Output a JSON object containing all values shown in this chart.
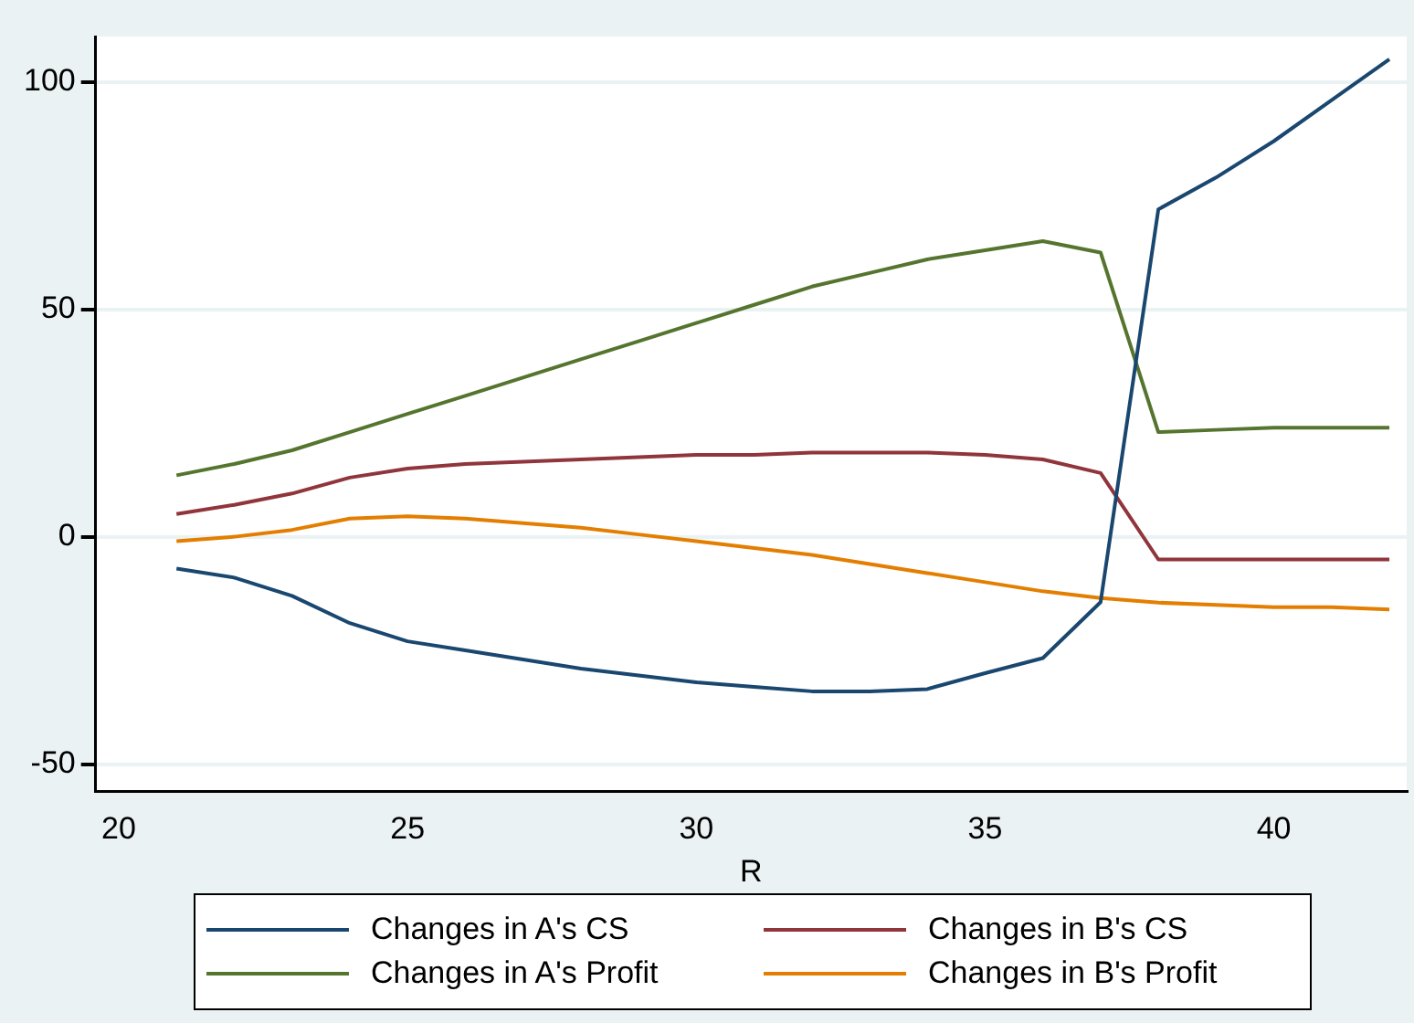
{
  "chart_data": {
    "type": "line",
    "xlabel": "R",
    "x": [
      21,
      22,
      23,
      24,
      25,
      26,
      27,
      28,
      29,
      30,
      31,
      32,
      33,
      34,
      35,
      36,
      37,
      38,
      39,
      40,
      41,
      42
    ],
    "series": [
      {
        "name": "Changes in A's CS",
        "color": "#1a476f",
        "values": [
          -7,
          -9,
          -13,
          -19,
          -23,
          -25,
          -27,
          -29,
          -30.5,
          -32,
          -33,
          -34,
          -34,
          -33.5,
          -30,
          -26.7,
          -14.4,
          72,
          79,
          87,
          96,
          105
        ]
      },
      {
        "name": "Changes in B's CS",
        "color": "#90353b",
        "values": [
          5,
          7,
          9.5,
          13,
          15,
          16,
          16.5,
          17,
          17.5,
          18,
          18,
          18.5,
          18.5,
          18.5,
          18,
          17,
          14,
          -5,
          -5,
          -5,
          -5,
          -5
        ]
      },
      {
        "name": "Changes in A's Profit",
        "color": "#55752f",
        "values": [
          13.5,
          16,
          19,
          23,
          27,
          31,
          35,
          39,
          43,
          47,
          51,
          55,
          58,
          61,
          63,
          65,
          62.5,
          23,
          23.5,
          24,
          24,
          24
        ]
      },
      {
        "name": "Changes in B's Profit",
        "color": "#e37e00",
        "values": [
          -1,
          0,
          1.5,
          4,
          4.5,
          4,
          3,
          2,
          0.5,
          -1,
          -2.5,
          -4,
          -6,
          -8,
          -10,
          -12,
          -13.5,
          -14.5,
          -15,
          -15.5,
          -15.5,
          -16
        ]
      }
    ],
    "xlim": [
      19.6,
      42.3
    ],
    "xticks": [
      20,
      25,
      30,
      35,
      40
    ],
    "ylim": [
      -56,
      110
    ],
    "yticks": [
      -50,
      0,
      50,
      100
    ],
    "grid": "y",
    "legend": "bottom",
    "marker": "none",
    "line_style": "solid"
  }
}
